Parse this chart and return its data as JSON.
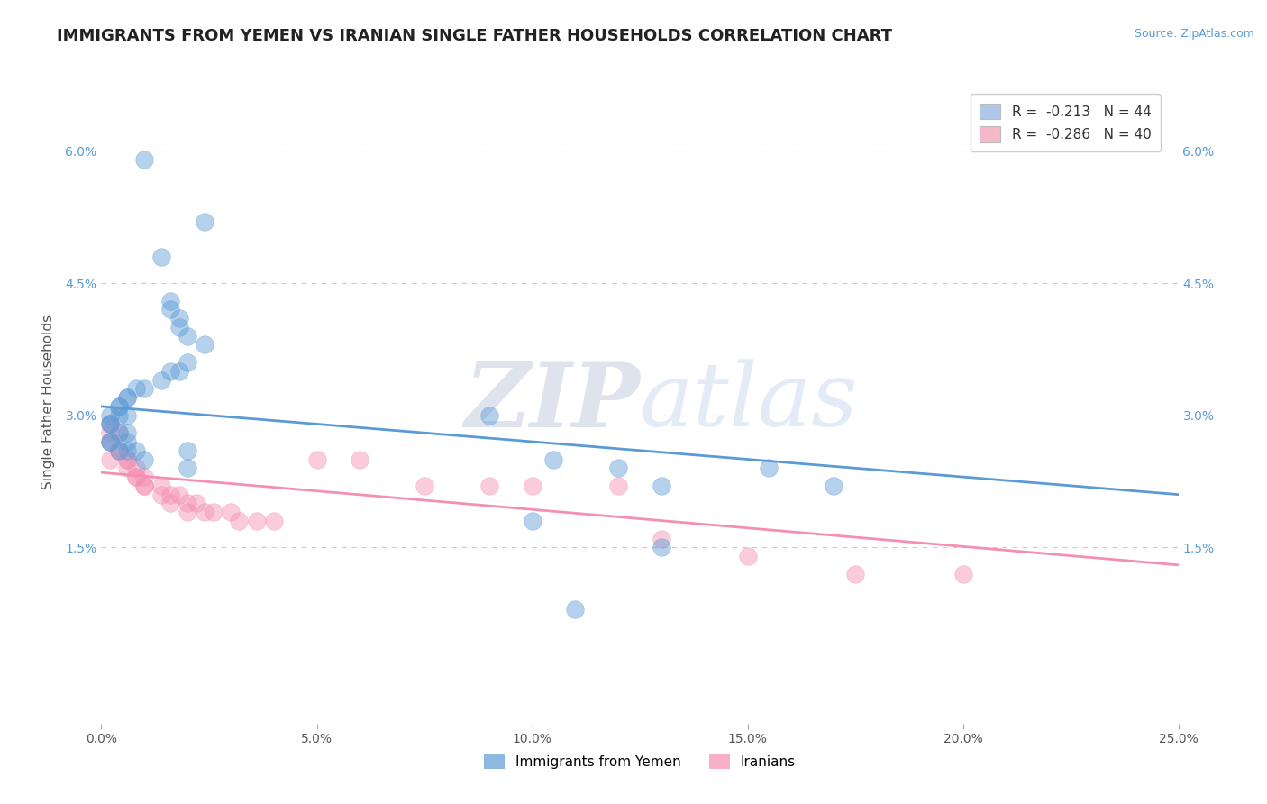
{
  "title": "IMMIGRANTS FROM YEMEN VS IRANIAN SINGLE FATHER HOUSEHOLDS CORRELATION CHART",
  "source": "Source: ZipAtlas.com",
  "ylabel": "Single Father Households",
  "xlim": [
    0.0,
    0.25
  ],
  "ylim": [
    -0.005,
    0.068
  ],
  "xticks": [
    0.0,
    0.05,
    0.1,
    0.15,
    0.2,
    0.25
  ],
  "yticks": [
    0.015,
    0.03,
    0.045,
    0.06
  ],
  "xticklabels": [
    "0.0%",
    "5.0%",
    "10.0%",
    "15.0%",
    "20.0%",
    "25.0%"
  ],
  "yticklabels": [
    "1.5%",
    "3.0%",
    "4.5%",
    "6.0%"
  ],
  "legend_entries": [
    {
      "label": "R =  -0.213   N = 44",
      "color": "#aec6e8"
    },
    {
      "label": "R =  -0.286   N = 40",
      "color": "#f4b8c8"
    }
  ],
  "legend_labels_bottom": [
    "Immigrants from Yemen",
    "Iranians"
  ],
  "blue_color": "#5b9bd5",
  "pink_color": "#f48fb1",
  "blue_scatter": [
    [
      0.01,
      0.059
    ],
    [
      0.024,
      0.052
    ],
    [
      0.014,
      0.048
    ],
    [
      0.016,
      0.043
    ],
    [
      0.016,
      0.042
    ],
    [
      0.018,
      0.041
    ],
    [
      0.018,
      0.04
    ],
    [
      0.02,
      0.039
    ],
    [
      0.024,
      0.038
    ],
    [
      0.02,
      0.036
    ],
    [
      0.018,
      0.035
    ],
    [
      0.016,
      0.035
    ],
    [
      0.014,
      0.034
    ],
    [
      0.01,
      0.033
    ],
    [
      0.008,
      0.033
    ],
    [
      0.006,
      0.032
    ],
    [
      0.006,
      0.032
    ],
    [
      0.004,
      0.031
    ],
    [
      0.004,
      0.031
    ],
    [
      0.004,
      0.03
    ],
    [
      0.006,
      0.03
    ],
    [
      0.002,
      0.03
    ],
    [
      0.002,
      0.029
    ],
    [
      0.002,
      0.029
    ],
    [
      0.006,
      0.028
    ],
    [
      0.004,
      0.028
    ],
    [
      0.002,
      0.027
    ],
    [
      0.002,
      0.027
    ],
    [
      0.006,
      0.027
    ],
    [
      0.006,
      0.026
    ],
    [
      0.008,
      0.026
    ],
    [
      0.004,
      0.026
    ],
    [
      0.02,
      0.026
    ],
    [
      0.01,
      0.025
    ],
    [
      0.02,
      0.024
    ],
    [
      0.09,
      0.03
    ],
    [
      0.105,
      0.025
    ],
    [
      0.12,
      0.024
    ],
    [
      0.155,
      0.024
    ],
    [
      0.17,
      0.022
    ],
    [
      0.13,
      0.022
    ],
    [
      0.1,
      0.018
    ],
    [
      0.13,
      0.015
    ],
    [
      0.11,
      0.008
    ]
  ],
  "pink_scatter": [
    [
      0.002,
      0.029
    ],
    [
      0.002,
      0.028
    ],
    [
      0.004,
      0.028
    ],
    [
      0.002,
      0.027
    ],
    [
      0.004,
      0.026
    ],
    [
      0.004,
      0.026
    ],
    [
      0.006,
      0.025
    ],
    [
      0.006,
      0.025
    ],
    [
      0.002,
      0.025
    ],
    [
      0.008,
      0.024
    ],
    [
      0.006,
      0.024
    ],
    [
      0.008,
      0.023
    ],
    [
      0.008,
      0.023
    ],
    [
      0.01,
      0.023
    ],
    [
      0.01,
      0.022
    ],
    [
      0.01,
      0.022
    ],
    [
      0.014,
      0.022
    ],
    [
      0.014,
      0.021
    ],
    [
      0.016,
      0.021
    ],
    [
      0.018,
      0.021
    ],
    [
      0.02,
      0.02
    ],
    [
      0.022,
      0.02
    ],
    [
      0.016,
      0.02
    ],
    [
      0.02,
      0.019
    ],
    [
      0.024,
      0.019
    ],
    [
      0.026,
      0.019
    ],
    [
      0.03,
      0.019
    ],
    [
      0.032,
      0.018
    ],
    [
      0.036,
      0.018
    ],
    [
      0.04,
      0.018
    ],
    [
      0.05,
      0.025
    ],
    [
      0.06,
      0.025
    ],
    [
      0.075,
      0.022
    ],
    [
      0.09,
      0.022
    ],
    [
      0.1,
      0.022
    ],
    [
      0.12,
      0.022
    ],
    [
      0.13,
      0.016
    ],
    [
      0.15,
      0.014
    ],
    [
      0.175,
      0.012
    ],
    [
      0.2,
      0.012
    ]
  ],
  "blue_trend": {
    "x_start": 0.0,
    "y_start": 0.031,
    "x_end": 0.25,
    "y_end": 0.021
  },
  "pink_trend": {
    "x_start": 0.0,
    "y_start": 0.0235,
    "x_end": 0.25,
    "y_end": 0.013
  },
  "watermark_zip": "ZIP",
  "watermark_atlas": "atlas",
  "background_color": "#ffffff",
  "grid_color": "#cccccc",
  "title_fontsize": 13,
  "axis_fontsize": 11,
  "tick_fontsize": 10
}
